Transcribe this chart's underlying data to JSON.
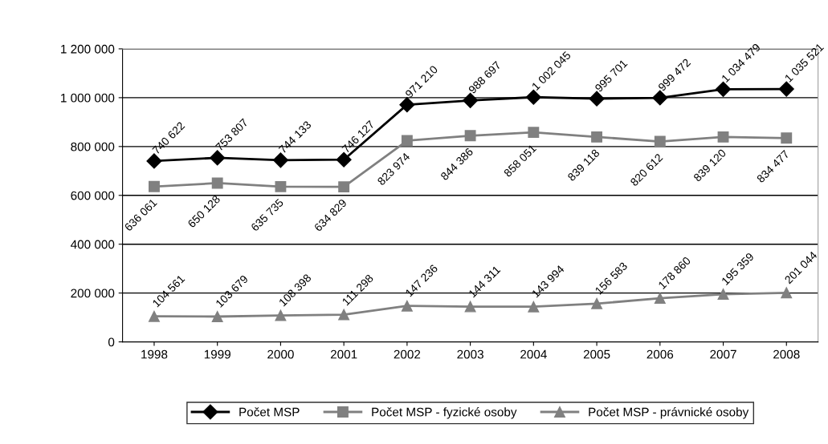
{
  "chart_data": {
    "type": "line",
    "categories": [
      "1998",
      "1999",
      "2000",
      "2001",
      "2002",
      "2003",
      "2004",
      "2005",
      "2006",
      "2007",
      "2008"
    ],
    "series": [
      {
        "name": "Počet MSP",
        "color": "#000000",
        "marker": "diamond",
        "values": [
          740622,
          753807,
          744133,
          746127,
          971210,
          988697,
          1002045,
          995701,
          999472,
          1034479,
          1035521
        ],
        "value_labels": [
          "740 622",
          "753 807",
          "744 133",
          "746 127",
          "971 210",
          "988 697",
          "1 002 045",
          "995 701",
          "999 472",
          "1 034 479",
          "1 035 521"
        ]
      },
      {
        "name": "Počet MSP - fyzické osoby",
        "color": "#808080",
        "marker": "square",
        "values": [
          636061,
          650128,
          635735,
          634829,
          823974,
          844386,
          858051,
          839118,
          820612,
          839120,
          834477
        ],
        "value_labels": [
          "636 061",
          "650 128",
          "635 735",
          "634 829",
          "823 974",
          "844 386",
          "858 051",
          "839 118",
          "820 612",
          "839 120",
          "834 477"
        ]
      },
      {
        "name": "Počet MSP - právnické osoby",
        "color": "#808080",
        "marker": "triangle",
        "values": [
          104561,
          103679,
          108398,
          111298,
          147236,
          144311,
          143994,
          156583,
          178860,
          195359,
          201044
        ],
        "value_labels": [
          "104 561",
          "103 679",
          "108 398",
          "111 298",
          "147 236",
          "144 311",
          "143 994",
          "156 583",
          "178 860",
          "195 359",
          "201 044"
        ]
      }
    ],
    "ylim": [
      0,
      1200000
    ],
    "yticks": [
      0,
      {
        "value": 200000,
        "label": "200 000"
      },
      {
        "value": 400000,
        "label": "400 000"
      },
      {
        "value": 600000,
        "label": "600 000"
      },
      {
        "value": 800000,
        "label": "800 000"
      },
      {
        "value": 1000000,
        "label": "1 000 000"
      },
      {
        "value": 1200000,
        "label": "1 200 000"
      }
    ],
    "grid": "y",
    "legend": "bottom"
  }
}
